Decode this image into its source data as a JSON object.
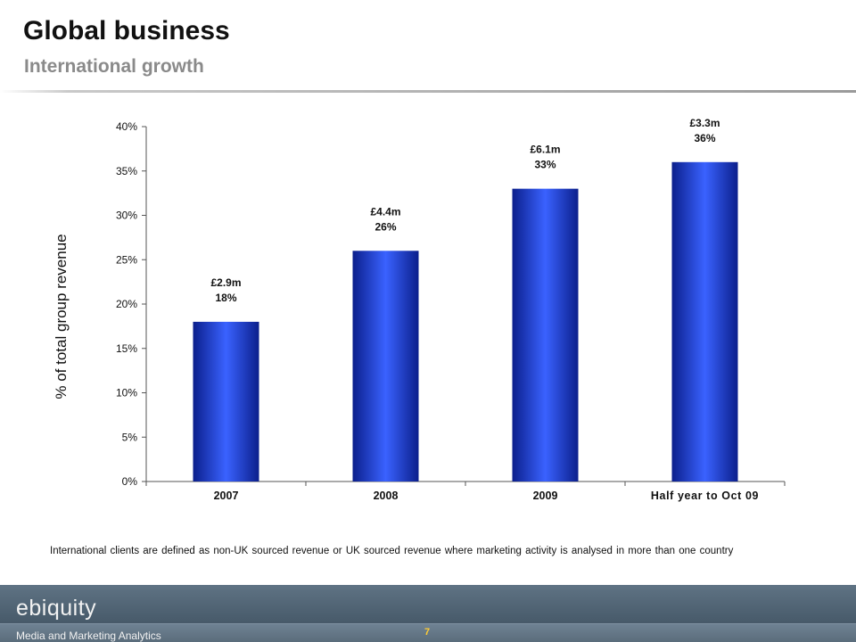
{
  "header": {
    "title": "Global business",
    "subtitle": "International growth"
  },
  "chart_data": {
    "type": "bar",
    "categories": [
      "2007",
      "2008",
      "2009",
      "Half year to Oct 09"
    ],
    "values": [
      18,
      26,
      33,
      36
    ],
    "data_labels": [
      [
        "£2.9m",
        "18%"
      ],
      [
        "£4.4m",
        "26%"
      ],
      [
        "£6.1m",
        "33%"
      ],
      [
        "£3.3m",
        "36%"
      ]
    ],
    "ylabel": "% of total group revenue",
    "xlabel": "",
    "ylim": [
      0,
      40
    ],
    "yticks": [
      0,
      5,
      10,
      15,
      20,
      25,
      30,
      35,
      40
    ],
    "ytick_suffix": "%",
    "grid": false,
    "legend": "none",
    "bar_color": "#2a4fe0"
  },
  "footnote": "International clients are defined as non-UK sourced revenue or UK sourced revenue where marketing activity is analysed in more than one country",
  "footer": {
    "logo": "ebiquity",
    "tagline": "Media and Marketing Analytics",
    "page_number": "7"
  }
}
